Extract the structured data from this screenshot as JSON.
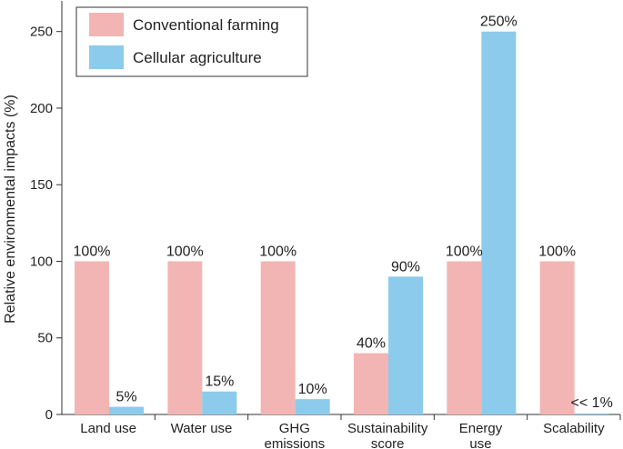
{
  "chart_data": {
    "type": "bar",
    "title": "",
    "xlabel": "",
    "ylabel": "Relative environmental impacts (%)",
    "ylim": [
      0,
      270
    ],
    "yticks": [
      0,
      50,
      100,
      150,
      200,
      250
    ],
    "grid": false,
    "legend_position": "top-left",
    "categories": [
      [
        "Land use"
      ],
      [
        "Water use"
      ],
      [
        "GHG",
        "emissions"
      ],
      [
        "Sustainability",
        "score"
      ],
      [
        "Energy",
        "use"
      ],
      [
        "Scalability"
      ]
    ],
    "series": [
      {
        "name": "Conventional farming",
        "color": "#f2b5b3",
        "values": [
          100,
          100,
          100,
          40,
          100,
          100
        ],
        "labels": [
          "100%",
          "100%",
          "100%",
          "40%",
          "100%",
          "100%"
        ]
      },
      {
        "name": "Cellular agriculture",
        "color": "#8ccbeb",
        "values": [
          5,
          15,
          10,
          90,
          250,
          0.5
        ],
        "labels": [
          "5%",
          "15%",
          "10%",
          "90%",
          "250%",
          "<< 1%"
        ]
      }
    ]
  }
}
